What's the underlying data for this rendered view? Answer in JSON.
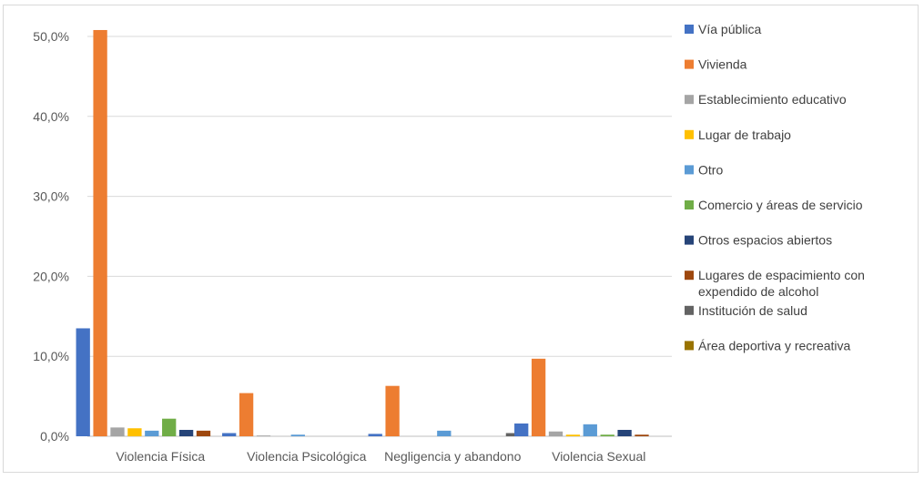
{
  "chart_data": {
    "type": "bar",
    "categories": [
      "Violencia Física",
      "Violencia Psicológica",
      "Negligencia y abandono",
      "Violencia Sexual"
    ],
    "ylim": [
      0,
      50
    ],
    "yticks": [
      0,
      10,
      20,
      30,
      40,
      50
    ],
    "ytick_labels": [
      "0,0%",
      "10,0%",
      "20,0%",
      "30,0%",
      "40,0%",
      "50,0%"
    ],
    "grid": true,
    "legend_position": "right",
    "series": [
      {
        "name": "Vía pública",
        "color": "#4472C4",
        "values": [
          13.5,
          0.4,
          0.3,
          1.6
        ]
      },
      {
        "name": "Vivienda",
        "color": "#ED7D31",
        "values": [
          50.8,
          5.4,
          6.3,
          9.7
        ]
      },
      {
        "name": "Establecimiento educativo",
        "color": "#A5A5A5",
        "values": [
          1.1,
          0.1,
          0.0,
          0.6
        ]
      },
      {
        "name": "Lugar de trabajo",
        "color": "#FFC000",
        "values": [
          1.0,
          0.0,
          0.0,
          0.2
        ]
      },
      {
        "name": "Otro",
        "color": "#5B9BD5",
        "values": [
          0.7,
          0.2,
          0.7,
          1.5
        ]
      },
      {
        "name": "Comercio y áreas de servicio",
        "color": "#70AD47",
        "values": [
          2.2,
          0.0,
          0.0,
          0.2
        ]
      },
      {
        "name": "Otros espacios abiertos",
        "color": "#264478",
        "values": [
          0.8,
          0.0,
          0.0,
          0.8
        ]
      },
      {
        "name": "Lugares de espacimiento con expendido de alcohol",
        "color": "#9E480E",
        "values": [
          0.7,
          0.0,
          0.0,
          0.2
        ]
      },
      {
        "name": "Institución de salud",
        "color": "#636363",
        "values": [
          0.0,
          0.0,
          0.4,
          0.0
        ]
      },
      {
        "name": "Área deportiva y recreativa",
        "color": "#997300",
        "values": [
          0.0,
          0.0,
          0.0,
          0.0
        ]
      }
    ]
  }
}
